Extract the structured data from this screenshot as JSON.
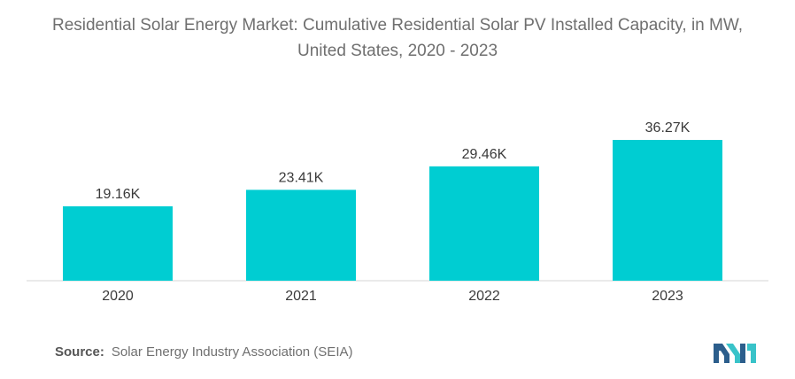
{
  "title_line1": "Residential Solar Energy Market: Cumulative Residential Solar PV Installed Capacity, in MW,",
  "title_line2": "United States, 2020 - 2023",
  "source_label": "Source:",
  "source_text": "Solar Energy Industry Association (SEIA)",
  "logo_icon": "mordor-intelligence-logo-icon",
  "colors": {
    "bar": "#00cdd2",
    "text": "#3a3a3a",
    "title": "#6f6f6f",
    "axis": "#d6d6d6",
    "logo_dark": "#2c5e8c",
    "logo_light": "#39c3c9"
  },
  "chart_data": {
    "type": "bar",
    "title": "Residential Solar Energy Market: Cumulative Residential Solar PV Installed Capacity, in MW, United States, 2020 - 2023",
    "xlabel": "",
    "ylabel": "",
    "categories": [
      "2020",
      "2021",
      "2022",
      "2023"
    ],
    "values": [
      19160,
      23410,
      29460,
      36270
    ],
    "data_labels": [
      "19.16K",
      "23.41K",
      "29.46K",
      "36.27K"
    ],
    "ylim": [
      0,
      36270
    ],
    "grid": false,
    "legend": "none"
  }
}
